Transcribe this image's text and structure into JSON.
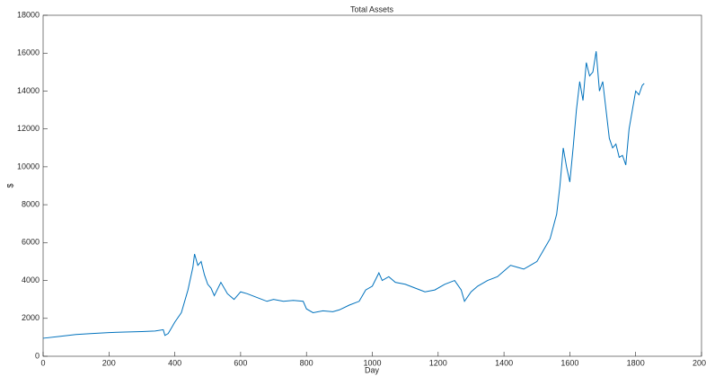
{
  "chart_data": {
    "type": "line",
    "title": "Total Assets",
    "xlabel": "Day",
    "ylabel": "$",
    "xlim": [
      0,
      2000
    ],
    "xticks": [
      0,
      200,
      400,
      600,
      800,
      1000,
      1200,
      1400,
      1600,
      1800,
      2000
    ],
    "ylim": [
      0,
      18000
    ],
    "yticks": [
      0,
      2000,
      4000,
      6000,
      8000,
      10000,
      12000,
      14000,
      16000,
      18000
    ],
    "x": [
      0,
      50,
      100,
      150,
      200,
      250,
      300,
      340,
      365,
      370,
      380,
      390,
      400,
      420,
      440,
      455,
      460,
      470,
      480,
      490,
      500,
      510,
      520,
      540,
      560,
      580,
      600,
      620,
      650,
      680,
      700,
      730,
      760,
      790,
      800,
      820,
      850,
      880,
      900,
      930,
      960,
      980,
      1000,
      1020,
      1030,
      1050,
      1070,
      1100,
      1130,
      1160,
      1190,
      1220,
      1250,
      1270,
      1280,
      1300,
      1320,
      1350,
      1380,
      1400,
      1420,
      1440,
      1460,
      1480,
      1500,
      1520,
      1540,
      1560,
      1570,
      1580,
      1590,
      1600,
      1610,
      1620,
      1630,
      1640,
      1650,
      1660,
      1670,
      1680,
      1690,
      1700,
      1710,
      1720,
      1730,
      1740,
      1750,
      1760,
      1770,
      1780,
      1790,
      1800,
      1810,
      1820,
      1826
    ],
    "series": [
      {
        "name": "Total Assets",
        "color": "#0072bd",
        "values": [
          950,
          1050,
          1150,
          1200,
          1250,
          1280,
          1300,
          1330,
          1400,
          1100,
          1200,
          1500,
          1800,
          2300,
          3500,
          4700,
          5400,
          4800,
          5000,
          4300,
          3800,
          3600,
          3200,
          3900,
          3300,
          3000,
          3400,
          3300,
          3100,
          2900,
          3000,
          2900,
          2950,
          2900,
          2500,
          2300,
          2400,
          2350,
          2450,
          2700,
          2900,
          3500,
          3700,
          4400,
          4000,
          4200,
          3900,
          3800,
          3600,
          3400,
          3500,
          3800,
          4000,
          3500,
          2900,
          3400,
          3700,
          4000,
          4200,
          4500,
          4800,
          4700,
          4600,
          4800,
          5000,
          5600,
          6200,
          7500,
          9000,
          11000,
          10000,
          9200,
          11000,
          13000,
          14500,
          13500,
          15500,
          14800,
          15000,
          16100,
          14000,
          14500,
          13000,
          11500,
          11000,
          11200,
          10500,
          10600,
          10100,
          12000,
          13000,
          14000,
          13800,
          14300,
          14400
        ]
      }
    ]
  }
}
